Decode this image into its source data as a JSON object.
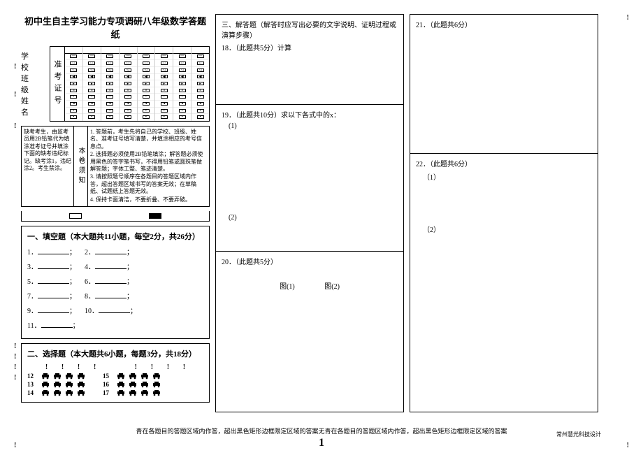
{
  "title": "初中生自主学习能力专项调研八年级数学答题纸",
  "student_labels": {
    "school": "学 校",
    "class": "班 级",
    "name": "姓 名"
  },
  "bubble_label": "准考证号",
  "bubble_digits": [
    "0",
    "1",
    "2",
    "3",
    "4",
    "5",
    "6",
    "7",
    "8",
    "9"
  ],
  "instructions": {
    "left": "缺考考生，由监考员用2B铅笔代为填涂准考证号并填涂下面的缺考违纪标记。缺考涂1，违纪涂2。考生禁涂。",
    "mid": "本卷须知",
    "rules": [
      "1. 答题前，考生先将自己的学校、班级、姓名、准考证号填写清楚，并填涂相应的考号信息点。",
      "2. 选择题必须使用2B铅笔填涂；解答题必须使用黑色的签字笔书写，不得用铅笔或圆珠笔做解答题；字体工整、笔迹清楚。",
      "3. 请按照题号顺序在各题目的答题区域内作答，超出答题区域书写的答案无效；在草稿纸、试题纸上答题无效。",
      "4. 保持卡面清洁，不要折叠、不要弄破。"
    ]
  },
  "section1": {
    "title": "一、填空题（本大题共11小题，每空2分，共26分）",
    "items": [
      "1．",
      "2．",
      "3．",
      "4．",
      "5．",
      "6．",
      "7．",
      "8．",
      "9．",
      "10．",
      "11．"
    ]
  },
  "section2": {
    "title": "二、选择题（本大题共6小题，每题3分，共18分）",
    "rows": [
      {
        "left": "12",
        "right": "15"
      },
      {
        "left": "13",
        "right": "16"
      },
      {
        "left": "14",
        "right": "17"
      }
    ],
    "opts": [
      "A",
      "B",
      "C",
      "D"
    ]
  },
  "section3": {
    "title": "三、解答题（解答时应写出必要的文字说明、证明过程或演算步骤）",
    "q18": "18．（此题共5分）计算",
    "q19": "19．（此题共10分）求以下各式中的x：",
    "q19_1": "(1)",
    "q19_2": "(2)",
    "q20": "20．（此题共5分）",
    "fig1": "图(1)",
    "fig2": "图(2)",
    "q21": "21．（此题共6分）",
    "q22": "22．（此题共6分）",
    "q22_1": "（1）",
    "q22_2": "（2）"
  },
  "footer": "青在各题目的答题区域内作答，超出黑色矩形边框限定区域的答案无青在各题目的答题区域内作答，超出黑色矩形边框限定区域的答案",
  "pagenum": "1",
  "credit": "常州慧光科技设计"
}
